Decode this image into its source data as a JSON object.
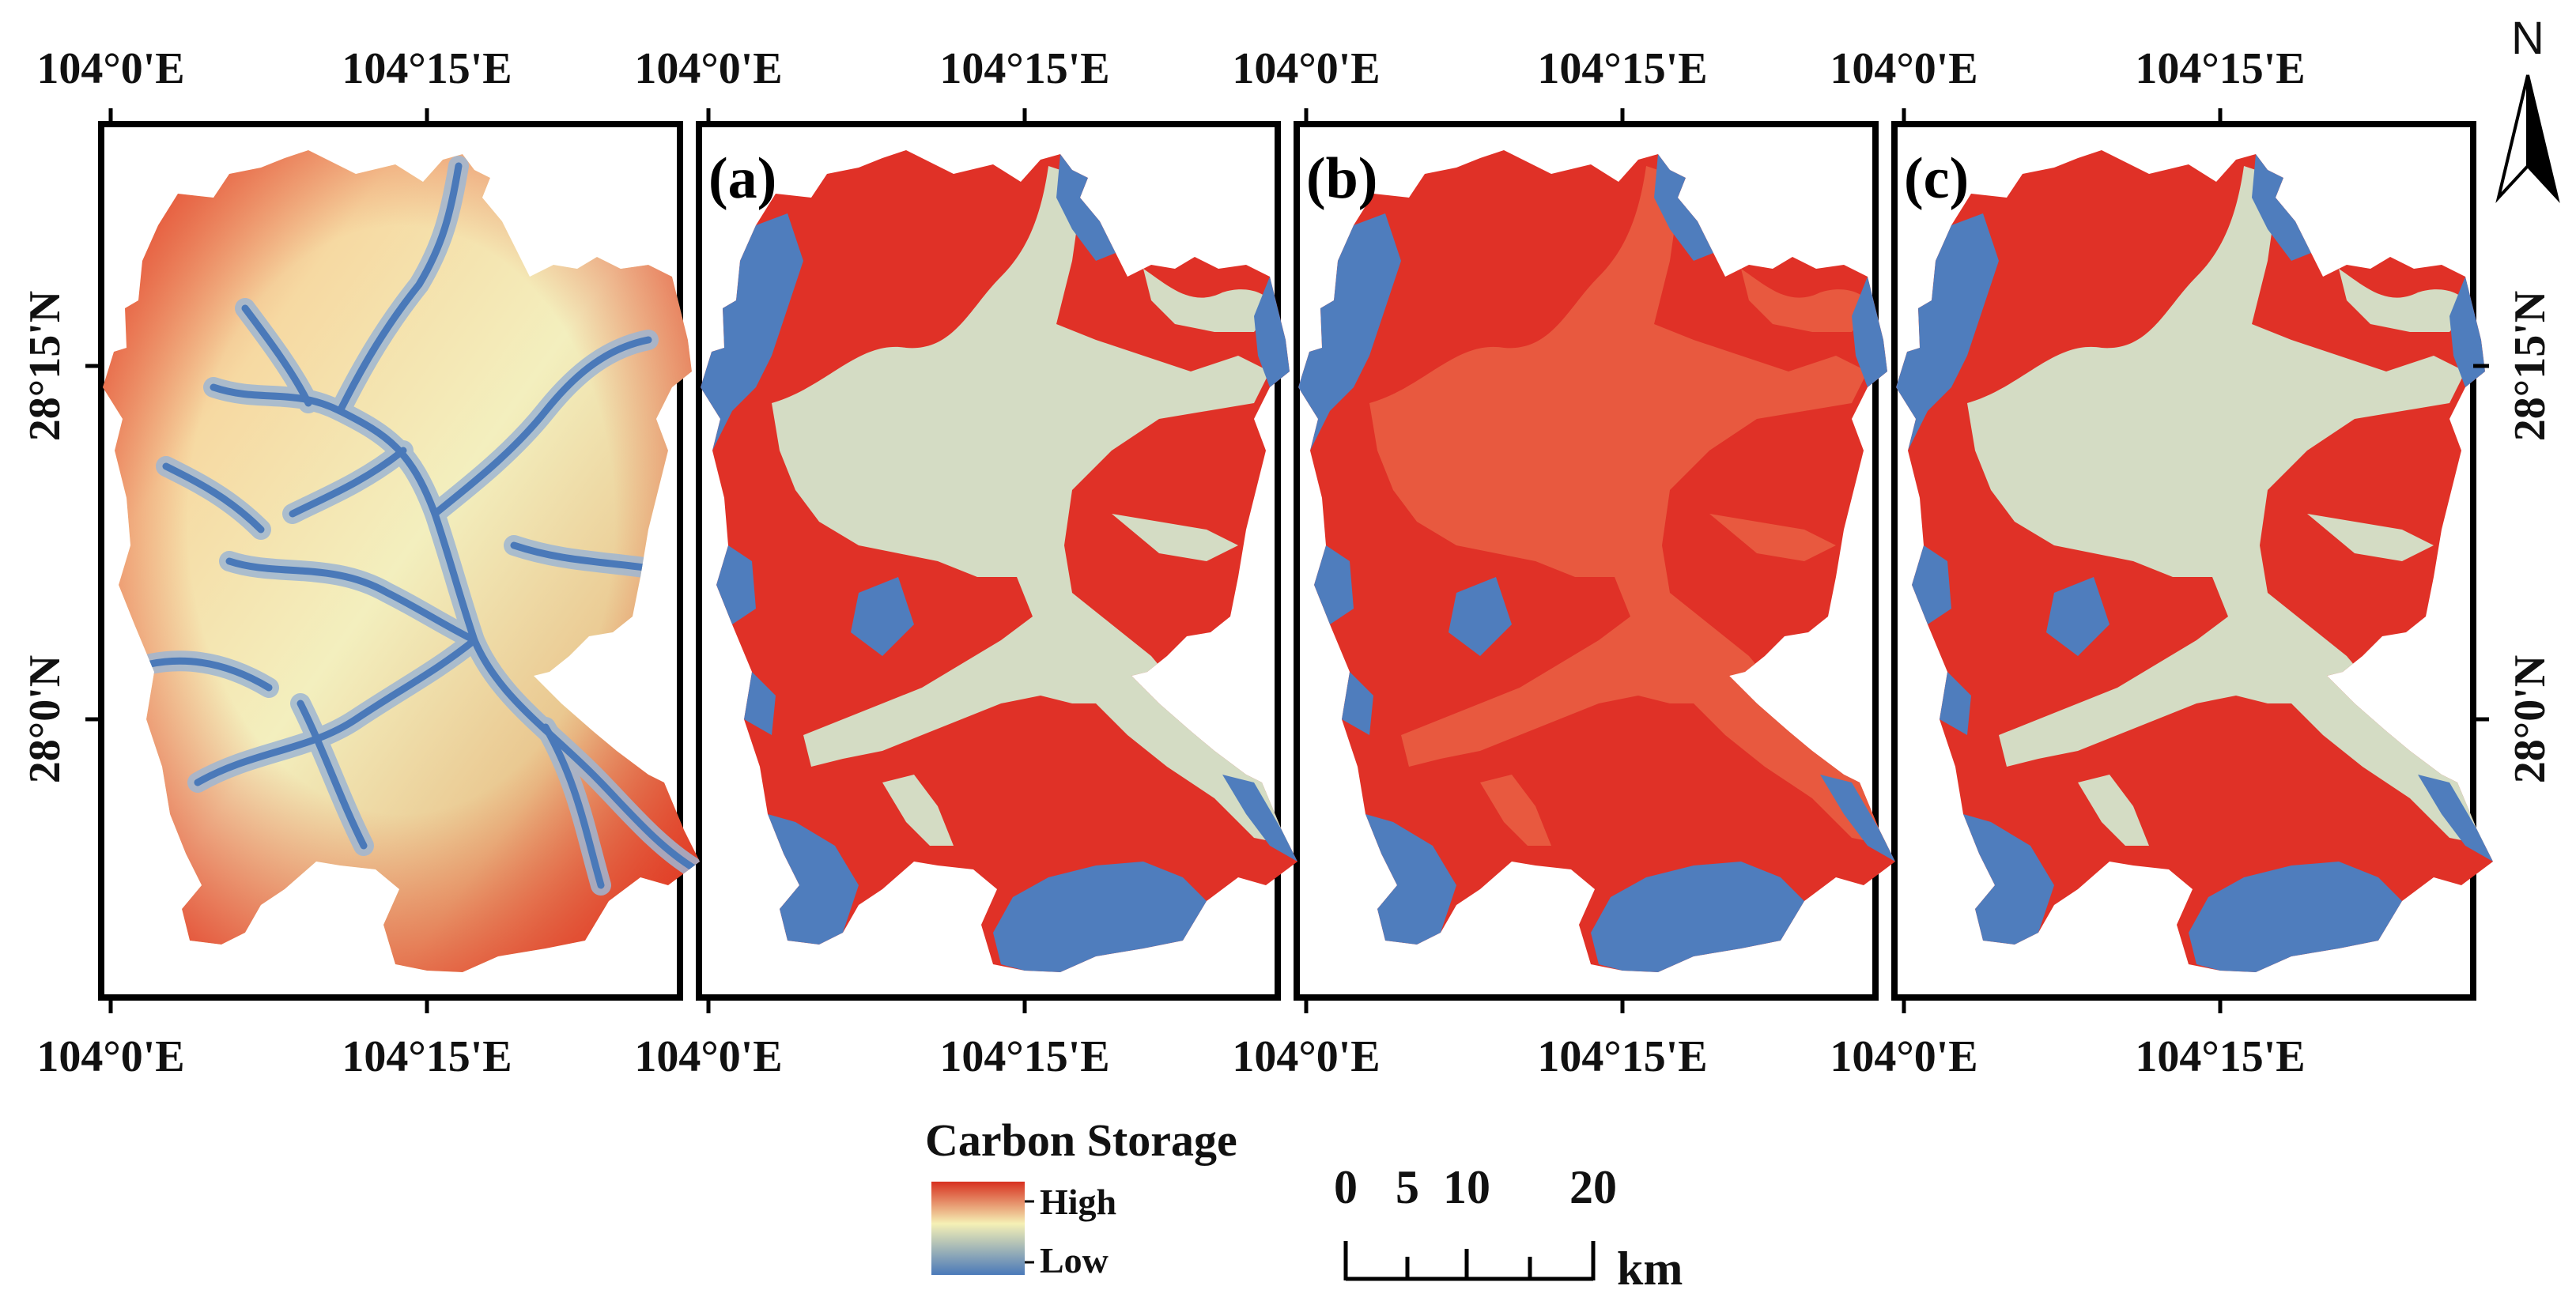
{
  "panels": [
    {
      "label": "",
      "kind": "elevation"
    },
    {
      "label": "(a)",
      "kind": "scenario"
    },
    {
      "label": "(b)",
      "kind": "scenario"
    },
    {
      "label": "(c)",
      "kind": "scenario"
    }
  ],
  "coordinates": {
    "lon_left": "104°0'E",
    "lon_mid": "104°15'E",
    "lat_upper": "28°15'N",
    "lat_lower": "28°0'N"
  },
  "legend": {
    "title": "Carbon Storage",
    "high": "High",
    "low": "Low"
  },
  "scale_bar": {
    "labels": [
      "0",
      "5",
      "10",
      "20"
    ],
    "unit": "km"
  },
  "north_label": "N",
  "colors": {
    "high_red": "#e03127",
    "mid_red": "#e8593f",
    "pale_green": "#d4dcc4",
    "low_blue": "#4f7dbd",
    "gradient_high": "#d7301f",
    "gradient_mid": "#f5f0b5",
    "gradient_low": "#4a79b9"
  }
}
